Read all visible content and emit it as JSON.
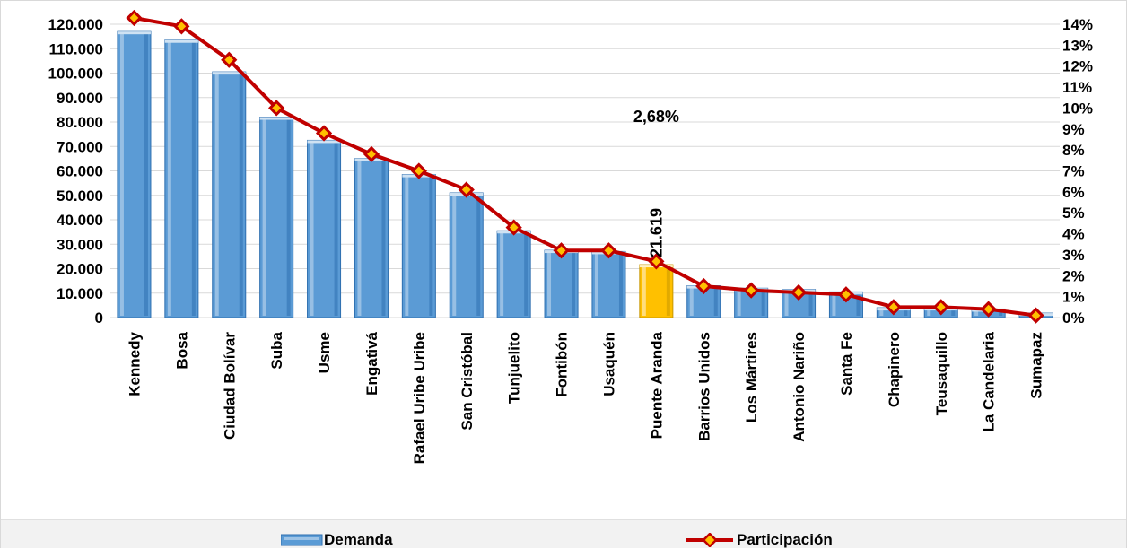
{
  "chart_data": {
    "type": "bar",
    "categories": [
      "Kennedy",
      "Bosa",
      "Ciudad Bolívar",
      "Suba",
      "Usme",
      "Engativá",
      "Rafael Uribe Uribe",
      "San Cristóbal",
      "Tunjuelito",
      "Fontibón",
      "Usaquén",
      "Puente Aranda",
      "Barrios Unidos",
      "Los Mártires",
      "Antonio Nariño",
      "Santa Fe",
      "Chapinero",
      "Teusaquillo",
      "La Candelaria",
      "Sumapaz"
    ],
    "series": [
      {
        "name": "Demanda",
        "type": "bar",
        "axis": "left",
        "values": [
          117000,
          113500,
          100500,
          82000,
          72500,
          65000,
          58500,
          51000,
          35500,
          27500,
          27000,
          21619,
          13000,
          12000,
          11500,
          10500,
          4000,
          4000,
          3500,
          1800
        ]
      },
      {
        "name": "Participación",
        "type": "line",
        "axis": "right",
        "values": [
          14.3,
          13.9,
          12.3,
          10.0,
          8.8,
          7.8,
          7.0,
          6.1,
          4.3,
          3.2,
          3.2,
          2.68,
          1.5,
          1.3,
          1.2,
          1.1,
          0.5,
          0.5,
          0.4,
          0.1
        ]
      }
    ],
    "y_left": {
      "min": 0,
      "max": 120000,
      "step": 10000,
      "tick_labels": [
        "0",
        "10.000",
        "20.000",
        "30.000",
        "40.000",
        "50.000",
        "60.000",
        "70.000",
        "80.000",
        "90.000",
        "100.000",
        "110.000",
        "120.000"
      ]
    },
    "y_right": {
      "min": 0,
      "max": 14,
      "step": 1,
      "tick_labels": [
        "0%",
        "1%",
        "2%",
        "3%",
        "4%",
        "5%",
        "6%",
        "7%",
        "8%",
        "9%",
        "10%",
        "11%",
        "12%",
        "13%",
        "14%"
      ]
    },
    "highlight": {
      "category": "Puente Aranda",
      "bar_label": "21.619",
      "line_label": "2,68%"
    },
    "legend_position": "bottom",
    "grid": true,
    "title": "",
    "xlabel": "",
    "ylabel": "",
    "colors": {
      "bar": "#5b9bd5",
      "bar_dark": "#2e6fb0",
      "bar_light": "#9dc3e6",
      "bar_highlight": "#ffc000",
      "bar_highlight_dark": "#c99700",
      "line": "#c00000",
      "marker_fill": "#ffc000",
      "marker_edge": "#c00000",
      "grid": "#d9d9d9"
    }
  }
}
